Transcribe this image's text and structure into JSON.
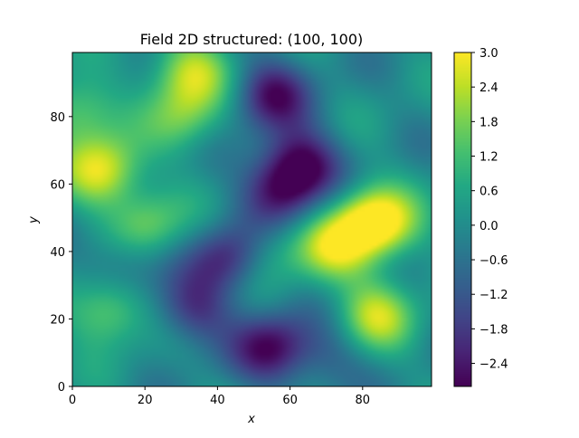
{
  "chart_data": {
    "type": "heatmap",
    "title": "Field 2D structured: (100, 100)",
    "xlabel": "x",
    "ylabel": "y",
    "xlim": [
      0,
      99
    ],
    "ylim": [
      0,
      99
    ],
    "x_ticks": [
      0,
      20,
      40,
      60,
      80
    ],
    "y_ticks": [
      0,
      20,
      40,
      60,
      80
    ],
    "colormap": "viridis",
    "clim": [
      -2.8,
      3.0
    ],
    "colorbar_ticks": [
      "3.0",
      "2.4",
      "1.8",
      "1.2",
      "0.6",
      "0.0",
      "−0.6",
      "−1.2",
      "−1.8",
      "−2.4"
    ],
    "colorbar_tick_values": [
      3.0,
      2.4,
      1.8,
      1.2,
      0.6,
      0.0,
      -0.6,
      -1.2,
      -1.8,
      -2.4
    ],
    "grid": false,
    "field_features": [
      {
        "x": 8,
        "y": 64,
        "value": 2.8
      },
      {
        "x": 32,
        "y": 94,
        "value": 2.4
      },
      {
        "x": 31,
        "y": 80,
        "value": 1.6
      },
      {
        "x": 1,
        "y": 82,
        "value": 1.8
      },
      {
        "x": 82,
        "y": 50,
        "value": 2.2
      },
      {
        "x": 72,
        "y": 41,
        "value": 2.1
      },
      {
        "x": 86,
        "y": 47,
        "value": 1.8
      },
      {
        "x": 84,
        "y": 21,
        "value": 2.3
      },
      {
        "x": 9,
        "y": 22,
        "value": 2.0
      },
      {
        "x": 20,
        "y": 48,
        "value": 1.8
      },
      {
        "x": 55,
        "y": 40,
        "value": 1.0
      },
      {
        "x": 63,
        "y": 66,
        "value": -2.8
      },
      {
        "x": 57,
        "y": 58,
        "value": -2.1
      },
      {
        "x": 55,
        "y": 87,
        "value": -2.4
      },
      {
        "x": 55,
        "y": 11,
        "value": -2.6
      },
      {
        "x": 43,
        "y": 38,
        "value": -2.2
      },
      {
        "x": 33,
        "y": 22,
        "value": -1.9
      },
      {
        "x": 14,
        "y": 37,
        "value": -1.2
      },
      {
        "x": 70,
        "y": 8,
        "value": -1.0
      }
    ]
  }
}
